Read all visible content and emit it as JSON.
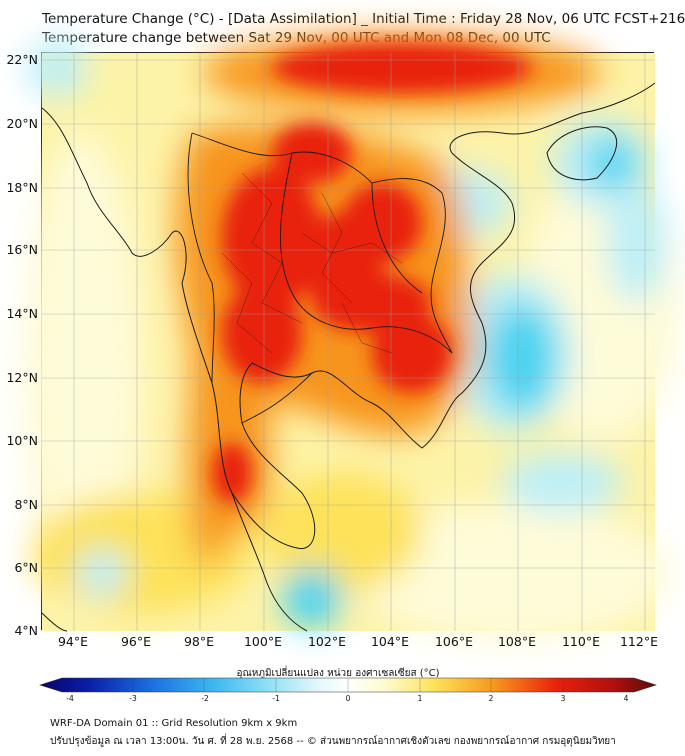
{
  "title": {
    "line1": "Temperature Change (°C) - [Data Assimilation] _ Initial Time : Friday 28 Nov, 06 UTC FCST+216",
    "line2": "Temperature change between Sat 29 Nov, 00 UTC and Mon 08 Dec, 00 UTC"
  },
  "axes": {
    "lat_labels": [
      "22°N",
      "20°N",
      "18°N",
      "16°N",
      "14°N",
      "12°N",
      "10°N",
      "8°N",
      "6°N",
      "4°N"
    ],
    "lon_labels": [
      "94°E",
      "96°E",
      "98°E",
      "100°E",
      "102°E",
      "104°E",
      "106°E",
      "108°E",
      "110°E",
      "112°E"
    ]
  },
  "colorbar": {
    "title": "อุณหภูมิเปลี่ยนแปลง หน่วย องศาเซลเซียส (°C)",
    "ticks": [
      "-4",
      "-3",
      "-2",
      "-1",
      "0",
      "1",
      "2",
      "3",
      "4"
    ]
  },
  "footer": {
    "line1": "WRF-DA Domain 01 :: Grid Resolution 9km x 9km",
    "line2": "ปรับปรุงข้อมูล ณ เวลา 13:00น. วัน ศ. ที่ 28 พ.ย. 2568 -- © ส่วนพยากรณ์อากาศเชิงตัวเลข กองพยากรณ์อากาศ กรมอุตุนิยมวิทยา"
  },
  "colors": {
    "warm_strong": "#e8200c",
    "warm_mid": "#f7941d",
    "warm_light": "#fde25a",
    "neutral": "#fefbd8",
    "cool_light": "#bdeff7",
    "cool_mid": "#49d3f0"
  }
}
